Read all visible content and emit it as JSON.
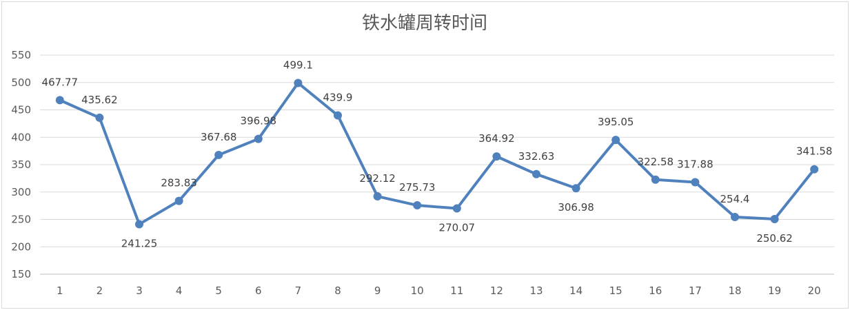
{
  "chart_data": {
    "type": "line",
    "title": "铁水罐周转时间",
    "xlabel": "",
    "ylabel": "",
    "categories": [
      "1",
      "2",
      "3",
      "4",
      "5",
      "6",
      "7",
      "8",
      "9",
      "10",
      "11",
      "12",
      "13",
      "14",
      "15",
      "16",
      "17",
      "18",
      "19",
      "20"
    ],
    "series": [
      {
        "values": [
          467.77,
          435.62,
          241.25,
          283.83,
          367.68,
          396.98,
          499.1,
          439.9,
          292.12,
          275.73,
          270.07,
          364.92,
          332.63,
          306.98,
          395.05,
          322.58,
          317.88,
          254.4,
          250.62,
          341.58
        ],
        "labels": [
          "467.77",
          "435.62",
          "241.25",
          "283.83",
          "367.68",
          "396.98",
          "499.1",
          "439.9",
          "292.12",
          "275.73",
          "270.07",
          "364.92",
          "332.63",
          "306.98",
          "395.05",
          "322.58",
          "317.88",
          "254.4",
          "250.62",
          "341.58"
        ],
        "label_position": [
          "above",
          "above",
          "below",
          "above",
          "above",
          "above",
          "above",
          "above",
          "above",
          "above",
          "below",
          "above",
          "above",
          "below",
          "above",
          "above",
          "above",
          "above",
          "below",
          "above"
        ],
        "color": "#4f81bd"
      }
    ],
    "ylim": [
      150,
      550
    ],
    "yticks": [
      "150",
      "200",
      "250",
      "300",
      "350",
      "400",
      "450",
      "500",
      "550"
    ],
    "grid": true,
    "legend": "none"
  }
}
